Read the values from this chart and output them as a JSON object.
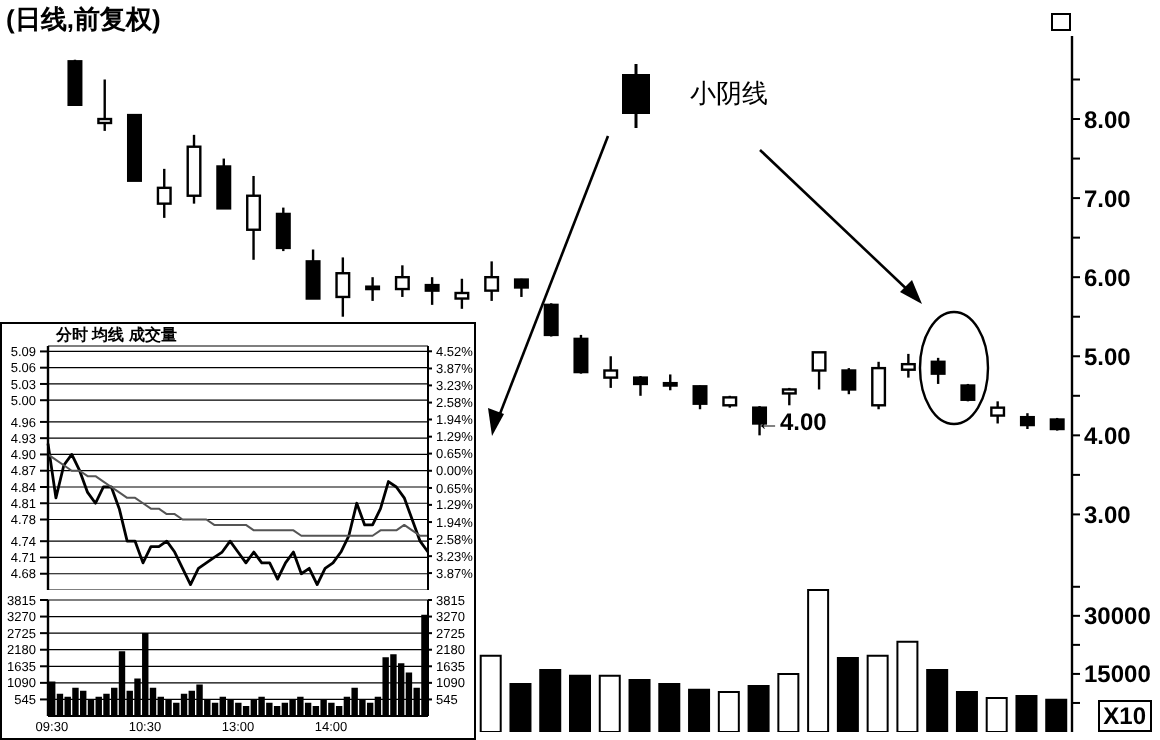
{
  "chart_data": [
    {
      "type": "candlestick",
      "title": "(日线,前复权)",
      "categories": [
        null,
        null,
        null,
        null,
        null,
        null,
        null,
        null,
        null,
        null,
        null,
        null,
        null,
        null,
        null,
        null,
        null,
        null,
        null,
        null,
        null,
        null,
        null,
        null,
        null,
        null,
        null,
        null,
        null,
        null,
        null,
        null,
        null,
        null
      ],
      "ohlc": [
        [
          8.73,
          8.75,
          8.18,
          8.18
        ],
        [
          7.95,
          8.5,
          7.85,
          8.0
        ],
        [
          8.05,
          8.05,
          7.22,
          7.22
        ],
        [
          6.93,
          7.37,
          6.75,
          7.13
        ],
        [
          7.03,
          7.8,
          6.93,
          7.65
        ],
        [
          7.4,
          7.5,
          6.87,
          6.87
        ],
        [
          6.6,
          7.28,
          6.22,
          7.03
        ],
        [
          6.8,
          6.88,
          6.33,
          6.37
        ],
        [
          6.2,
          6.35,
          5.73,
          5.73
        ],
        [
          5.75,
          6.25,
          5.5,
          6.05
        ],
        [
          5.86,
          6.0,
          5.7,
          5.88
        ],
        [
          5.85,
          6.15,
          5.75,
          6.0
        ],
        [
          5.9,
          6.0,
          5.65,
          5.83
        ],
        [
          5.73,
          5.98,
          5.6,
          5.8
        ],
        [
          5.83,
          6.2,
          5.7,
          6.0
        ],
        [
          5.97,
          5.98,
          5.75,
          5.87
        ],
        [
          5.65,
          5.67,
          5.25,
          5.27
        ],
        [
          5.22,
          5.27,
          4.78,
          4.8
        ],
        [
          4.73,
          5.0,
          4.6,
          4.82
        ],
        [
          4.73,
          4.75,
          4.5,
          4.65
        ],
        [
          4.66,
          4.77,
          4.57,
          4.65
        ],
        [
          4.62,
          4.63,
          4.33,
          4.4
        ],
        [
          4.38,
          4.5,
          4.35,
          4.48
        ],
        [
          4.35,
          4.37,
          4.0,
          4.15
        ],
        [
          4.53,
          4.6,
          4.38,
          4.58
        ],
        [
          4.82,
          5.05,
          4.58,
          5.05
        ],
        [
          4.82,
          4.85,
          4.52,
          4.58
        ],
        [
          4.38,
          4.93,
          4.33,
          4.85
        ],
        [
          4.83,
          5.03,
          4.73,
          4.9
        ],
        [
          4.93,
          4.98,
          4.65,
          4.78
        ],
        [
          4.63,
          4.65,
          4.43,
          4.45
        ],
        [
          4.25,
          4.43,
          4.15,
          4.35
        ],
        [
          4.23,
          4.28,
          4.08,
          4.13
        ],
        [
          4.2,
          4.22,
          4.06,
          4.08
        ]
      ],
      "colors": [
        "#000000",
        "#ffffff",
        "#000000",
        "#ffffff",
        "#ffffff",
        "#000000",
        "#ffffff",
        "#000000",
        "#000000",
        "#ffffff",
        "#ffffff",
        "#ffffff",
        "#000000",
        "#ffffff",
        "#ffffff",
        "#000000",
        "#000000",
        "#000000",
        "#ffffff",
        "#000000",
        "#000000",
        "#000000",
        "#ffffff",
        "#000000",
        "#ffffff",
        "#ffffff",
        "#000000",
        "#ffffff",
        "#ffffff",
        "#000000",
        "#000000",
        "#ffffff",
        "#000000",
        "#000000"
      ],
      "ylim": [
        2.55,
        9.05
      ],
      "yticks": [
        {
          "value": 3,
          "label": "3.00"
        },
        {
          "value": 3.5,
          "label": null
        },
        {
          "value": 4,
          "label": "4.00"
        },
        {
          "value": 4.5,
          "label": null
        },
        {
          "value": 5,
          "label": "5.00"
        },
        {
          "value": 5.5,
          "label": null
        },
        {
          "value": 6,
          "label": "6.00"
        },
        {
          "value": 6.5,
          "label": null
        },
        {
          "value": 7,
          "label": "7.00"
        },
        {
          "value": 7.5,
          "label": null
        },
        {
          "value": 8,
          "label": "8.00"
        },
        {
          "value": 8.5,
          "label": null
        }
      ],
      "tick_labels": "y",
      "annotations": [
        "小阴线",
        "←4.00"
      ]
    },
    {
      "type": "bar",
      "ylabel": "X10",
      "categories": [
        null,
        null,
        null,
        null,
        null,
        null,
        null,
        null,
        null,
        null,
        null,
        null,
        null,
        null,
        null,
        null,
        null,
        null,
        null,
        null,
        null,
        null,
        null,
        null,
        null,
        null,
        null,
        null,
        null,
        null,
        null,
        null,
        null,
        null
      ],
      "values": [
        null,
        null,
        null,
        null,
        null,
        null,
        null,
        null,
        null,
        null,
        null,
        null,
        null,
        null,
        19700,
        12400,
        16000,
        14500,
        14500,
        13400,
        12400,
        10900,
        10300,
        11900,
        15000,
        36700,
        19100,
        19700,
        23300,
        16000,
        10300,
        8800,
        9300,
        8300
      ],
      "colors": [
        "#000000",
        "#ffffff",
        "#000000",
        "#ffffff",
        "#ffffff",
        "#000000",
        "#ffffff",
        "#000000",
        "#000000",
        "#ffffff",
        "#ffffff",
        "#ffffff",
        "#000000",
        "#ffffff",
        "#ffffff",
        "#000000",
        "#000000",
        "#000000",
        "#ffffff",
        "#000000",
        "#000000",
        "#000000",
        "#ffffff",
        "#000000",
        "#ffffff",
        "#ffffff",
        "#000000",
        "#ffffff",
        "#ffffff",
        "#000000",
        "#000000",
        "#ffffff",
        "#000000",
        "#000000"
      ],
      "ylim": [
        0,
        47000
      ],
      "yticks": [
        {
          "value": 7500,
          "label": null
        },
        15000,
        {
          "value": 22500,
          "label": null
        },
        30000,
        {
          "value": 37500,
          "label": null
        }
      ],
      "tick_labels": "y"
    },
    {
      "type": "line",
      "title": "分时 均线 成交量",
      "categories": [
        null,
        null,
        null,
        null,
        null,
        null,
        null,
        null,
        null,
        null,
        null,
        null,
        null,
        null,
        null,
        null,
        null,
        null,
        null,
        null,
        null,
        null,
        null,
        null,
        null,
        null,
        null,
        null,
        null,
        null,
        null,
        null,
        null,
        null,
        null,
        null,
        null,
        null,
        null,
        null,
        null,
        null,
        null,
        null,
        null,
        null,
        null,
        null,
        null
      ],
      "series": [
        {
          "color": "#000000",
          "values": [
            4.92,
            4.82,
            4.88,
            4.9,
            4.87,
            4.83,
            4.81,
            4.84,
            4.84,
            4.8,
            4.74,
            4.74,
            4.7,
            4.73,
            4.73,
            4.74,
            4.72,
            4.69,
            4.66,
            4.69,
            4.7,
            4.71,
            4.72,
            4.74,
            4.72,
            4.7,
            4.72,
            4.7,
            4.7,
            4.67,
            4.7,
            4.72,
            4.68,
            4.69,
            4.66,
            4.69,
            4.7,
            4.72,
            4.75,
            4.81,
            4.77,
            4.77,
            4.8,
            4.85,
            4.84,
            4.82,
            4.78,
            4.74,
            4.72
          ]
        },
        {
          "color": "#555555",
          "values": [
            4.9,
            4.89,
            4.88,
            4.87,
            4.87,
            4.86,
            4.86,
            4.85,
            4.84,
            4.83,
            4.82,
            4.82,
            4.81,
            4.8,
            4.8,
            4.79,
            4.79,
            4.78,
            4.78,
            4.78,
            4.78,
            4.77,
            4.77,
            4.77,
            4.77,
            4.77,
            4.76,
            4.76,
            4.76,
            4.76,
            4.76,
            4.76,
            4.75,
            4.75,
            4.75,
            4.75,
            4.75,
            4.75,
            4.75,
            4.75,
            4.75,
            4.75,
            4.76,
            4.76,
            4.76,
            4.77,
            4.76,
            4.75,
            4.75
          ]
        }
      ],
      "ylim": [
        4.65,
        5.1
      ],
      "yticks": [
        4.68,
        4.71,
        4.74,
        4.78,
        4.81,
        4.84,
        4.87,
        {
          "value": 4.9,
          "label": "4.90"
        },
        4.93,
        4.96,
        {
          "value": 5,
          "label": "5.00"
        },
        5.03,
        5.06,
        5.09
      ],
      "y2lim": [
        -4.51,
        4.72
      ],
      "y2ticks": [
        {
          "value": -3.87,
          "label": "3.87%"
        },
        {
          "value": -3.23,
          "label": "3.23%"
        },
        {
          "value": -2.58,
          "label": "2.58%"
        },
        {
          "value": -1.94,
          "label": "1.94%"
        },
        {
          "value": -1.29,
          "label": "1.29%"
        },
        {
          "value": -0.65,
          "label": "0.65%"
        },
        {
          "value": 0,
          "label": "0.00%"
        },
        {
          "value": 0.65,
          "label": "0.65%"
        },
        {
          "value": 1.29,
          "label": "1.29%"
        },
        {
          "value": 1.94,
          "label": "1.94%"
        },
        {
          "value": 2.58,
          "label": "2.58%"
        },
        {
          "value": 3.23,
          "label": "3.23%"
        },
        {
          "value": 3.87,
          "label": "3.87%"
        },
        {
          "value": 4.52,
          "label": "4.52%"
        }
      ],
      "grid": "y",
      "tick_labels": "y"
    },
    {
      "type": "bar",
      "categories": [
        "09:30",
        null,
        null,
        null,
        null,
        null,
        null,
        null,
        null,
        null,
        null,
        null,
        "10:30",
        null,
        null,
        null,
        null,
        null,
        null,
        null,
        null,
        null,
        null,
        null,
        "13:00",
        null,
        null,
        null,
        null,
        null,
        null,
        null,
        null,
        null,
        null,
        null,
        "14:00",
        null,
        null,
        null,
        null,
        null,
        null,
        null,
        null,
        null,
        null,
        null,
        null
      ],
      "values": [
        1100,
        700,
        600,
        900,
        800,
        500,
        600,
        700,
        900,
        2100,
        800,
        1200,
        2700,
        900,
        600,
        500,
        400,
        700,
        800,
        1000,
        500,
        400,
        600,
        500,
        400,
        300,
        500,
        600,
        400,
        300,
        400,
        500,
        600,
        400,
        300,
        500,
        400,
        300,
        600,
        900,
        500,
        400,
        600,
        1900,
        2000,
        1700,
        1400,
        900,
        3300
      ],
      "color": "#000000",
      "ylim": [
        0,
        3815
      ],
      "yticks": [
        545,
        1090,
        1635,
        2180,
        2725,
        3270,
        3815
      ],
      "y2lim": [
        0,
        3815
      ],
      "y2ticks": [
        545,
        1090,
        1635,
        2180,
        2725,
        3270,
        3815
      ],
      "grid": "y"
    }
  ]
}
